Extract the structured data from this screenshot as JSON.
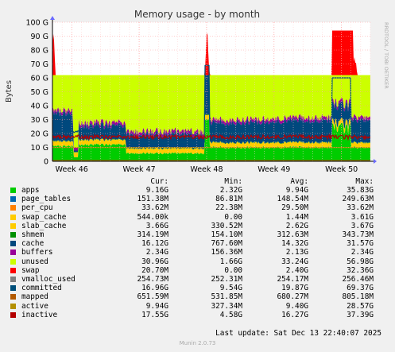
{
  "chart_data": {
    "type": "area",
    "title": "Memory usage - by month",
    "ylabel": "Bytes",
    "side_label": "RRDTOOL / TOBI OETIKER",
    "ylim": [
      0,
      100
    ],
    "y_unit": "G",
    "yticks": [
      "0",
      "10 G",
      "20 G",
      "30 G",
      "40 G",
      "50 G",
      "60 G",
      "70 G",
      "80 G",
      "90 G",
      "100 G"
    ],
    "x_range_days": [
      0,
      33
    ],
    "xticks": [
      {
        "label": "Week 46",
        "day": 2
      },
      {
        "label": "Week 47",
        "day": 9
      },
      {
        "label": "Week 48",
        "day": 16
      },
      {
        "label": "Week 49",
        "day": 23
      },
      {
        "label": "Week 50",
        "day": 30
      }
    ],
    "series": [
      {
        "name": "apps",
        "color": "#00cc00",
        "cur": "9.16G",
        "min": "2.32G",
        "avg": "9.94G",
        "max": "35.83G"
      },
      {
        "name": "page_tables",
        "color": "#0066b3",
        "cur": "151.38M",
        "min": "86.81M",
        "avg": "148.54M",
        "max": "249.63M"
      },
      {
        "name": "per_cpu",
        "color": "#ff8000",
        "cur": "33.62M",
        "min": "22.38M",
        "avg": "29.50M",
        "max": "33.62M"
      },
      {
        "name": "swap_cache",
        "color": "#ffcc00",
        "cur": "544.00k",
        "min": "0.00",
        "avg": "1.44M",
        "max": "3.61G"
      },
      {
        "name": "slab_cache",
        "color": "#ffcc00",
        "cur": "3.66G",
        "min": "330.52M",
        "avg": "2.62G",
        "max": "3.67G"
      },
      {
        "name": "shmem",
        "color": "#008f00",
        "cur": "314.19M",
        "min": "154.10M",
        "avg": "312.63M",
        "max": "343.73M"
      },
      {
        "name": "cache",
        "color": "#00487d",
        "cur": "16.12G",
        "min": "767.60M",
        "avg": "14.32G",
        "max": "31.57G"
      },
      {
        "name": "buffers",
        "color": "#990099",
        "cur": "2.34G",
        "min": "156.36M",
        "avg": "2.13G",
        "max": "2.34G"
      },
      {
        "name": "unused",
        "color": "#ccff00",
        "cur": "30.96G",
        "min": "1.66G",
        "avg": "33.24G",
        "max": "56.98G"
      },
      {
        "name": "swap",
        "color": "#ff0000",
        "cur": "20.70M",
        "min": "0.00",
        "avg": "2.40G",
        "max": "32.36G"
      },
      {
        "name": "vmalloc_used",
        "color": "#808080",
        "cur": "254.73M",
        "min": "252.31M",
        "avg": "254.17M",
        "max": "256.46M"
      },
      {
        "name": "committed",
        "color": "#004e7a",
        "cur": "16.96G",
        "min": "9.54G",
        "avg": "19.87G",
        "max": "69.37G"
      },
      {
        "name": "mapped",
        "color": "#b35a00",
        "cur": "651.59M",
        "min": "531.85M",
        "avg": "680.27M",
        "max": "805.18M"
      },
      {
        "name": "active",
        "color": "#b38f00",
        "cur": "9.94G",
        "min": "327.34M",
        "avg": "9.40G",
        "max": "28.57G"
      },
      {
        "name": "inactive",
        "color": "#b30000",
        "cur": "17.55G",
        "min": "4.58G",
        "avg": "16.27G",
        "max": "37.39G"
      }
    ]
  },
  "legend_header": {
    "cur": "Cur:",
    "min": "Min:",
    "avg": "Avg:",
    "max": "Max:"
  },
  "last_update": "Last update:  Sat Dec 13 22:40:07 2025",
  "footer": "Munin 2.0.73"
}
